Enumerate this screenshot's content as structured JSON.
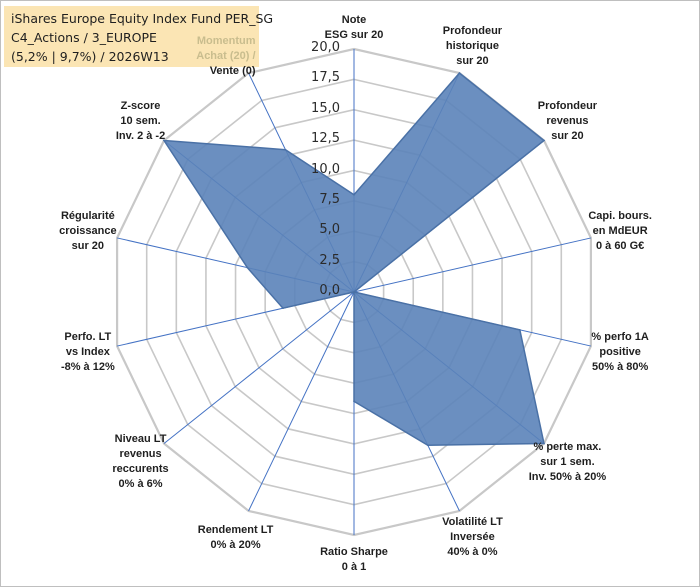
{
  "title": {
    "line1": "iShares Europe Equity Index Fund PER_SG",
    "line2": "C4_Actions / 3_EUROPE",
    "line3": "(5,2% | 9,7%) / 2026W13"
  },
  "colors": {
    "fill": "#5b83b9",
    "stroke": "#4a71a6",
    "grid": "#c8c8c8",
    "spoke": "#4472c4",
    "title_bg": "#fbe5b4"
  },
  "chart_data": {
    "type": "radar",
    "rmin": 0,
    "rmax": 20,
    "ticks": [
      "0,0",
      "2,5",
      "5,0",
      "7,5",
      "10,0",
      "12,5",
      "15,0",
      "17,5",
      "20,0"
    ],
    "axes": [
      {
        "label": "Note\nESG sur 20",
        "value": 8
      },
      {
        "label": "Profondeur\nhistorique\nsur 20",
        "value": 20
      },
      {
        "label": "Profondeur\nrevenus\nsur 20",
        "value": 20
      },
      {
        "label": "Capi. bours.\nen MdEUR\n0 à 60 G€",
        "value": 0
      },
      {
        "label": "% perfo 1A\npositive\n50% à 80%",
        "value": 14
      },
      {
        "label": "% perte max.\nsur 1 sem.\nInv. 50% à 20%",
        "value": 20
      },
      {
        "label": "Volatilité LT\nInversée\n40% à 0%",
        "value": 14
      },
      {
        "label": "Ratio Sharpe\n0 à 1",
        "value": 9
      },
      {
        "label": "Rendement LT\n0% à 20%",
        "value": 0
      },
      {
        "label": "Niveau LT\nrevenus\nreccurents\n0% à 6%",
        "value": 0
      },
      {
        "label": "Perfo. LT\nvs Index\n-8% à 12%",
        "value": 6
      },
      {
        "label": "Régularité\ncroissance\nsur 20",
        "value": 9
      },
      {
        "label": "Z-score\n10 sem.\nInv. 2 à -2",
        "value": 20
      },
      {
        "label": "Momentum\nAchat (20) /\nVente (0)",
        "value": 13
      }
    ]
  }
}
